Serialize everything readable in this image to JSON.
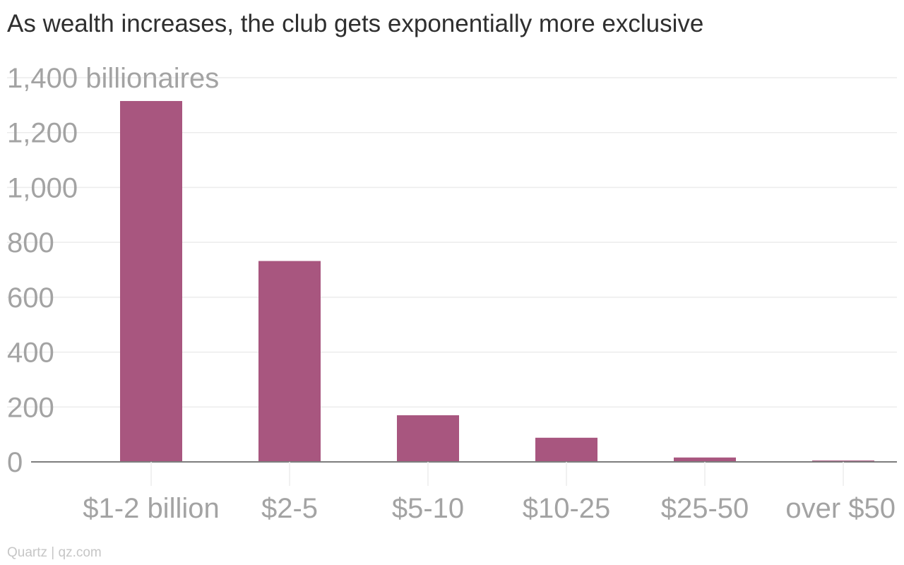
{
  "chart_data": {
    "type": "bar",
    "title": "As wealth increases, the club gets exponentially more exclusive",
    "categories": [
      "$1-2 billion",
      "$2-5",
      "$5-10",
      "$10-25",
      "$25-50",
      "over $50"
    ],
    "values": [
      1315,
      732,
      170,
      88,
      16,
      5
    ],
    "y_tick_labels": [
      "0",
      "200",
      "400",
      "600",
      "800",
      "1,000",
      "1,200",
      "1,400 billionaires"
    ],
    "y_ticks": [
      0,
      200,
      400,
      600,
      800,
      1000,
      1200,
      1400
    ],
    "ylim": [
      0,
      1400
    ],
    "xlabel": "",
    "ylabel": "",
    "grid": true,
    "legend": "none",
    "bar_color": "#a8567f",
    "grid_color": "#ececec",
    "axis_color": "#7d7d7d",
    "label_color": "#a3a3a3"
  },
  "source": "Quartz | qz.com"
}
